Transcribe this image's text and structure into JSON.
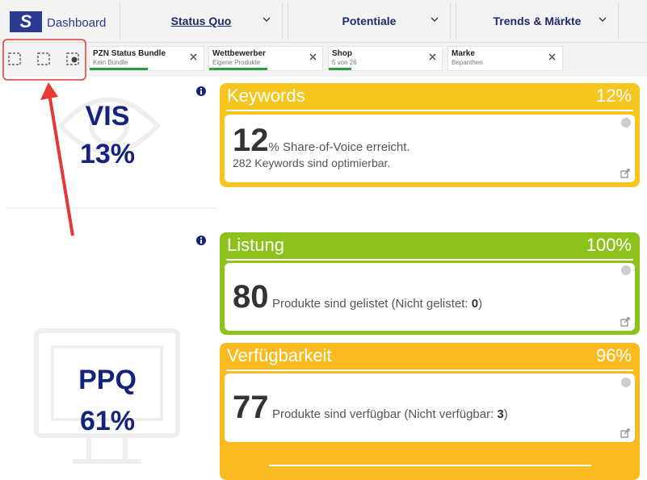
{
  "nav": {
    "logo": "S",
    "dashboard": "Dashboard",
    "tabs": [
      "Status Quo",
      "Potentiale",
      "Trends & Märkte"
    ]
  },
  "filters": [
    {
      "label": "PZN Status Bundle",
      "value": "Kein Bundle"
    },
    {
      "label": "Wettbewerber",
      "value": "Eigene Produkte"
    },
    {
      "label": "Shop",
      "value": "5 von 26"
    },
    {
      "label": "Marke",
      "value": "Bepanthen"
    }
  ],
  "kpis": [
    {
      "label": "VIS",
      "value": "13%"
    },
    {
      "label": "PPQ",
      "value": "61%"
    }
  ],
  "cards": [
    {
      "title": "Keywords",
      "percent": "12%",
      "big": "12",
      "text": "% Share-of-Voice erreicht.",
      "line2": "282 Keywords sind optimierbar."
    },
    {
      "title": "Listung",
      "percent": "100%",
      "big": "80",
      "text": "Produkte sind gelistet (Nicht gelistet: ",
      "count": "0",
      "close": ")"
    },
    {
      "title": "Verfügbarkeit",
      "percent": "96%",
      "big": "77",
      "text": "Produkte sind verfügbar (Nicht verfügbar: ",
      "count": "3",
      "close": ")"
    }
  ]
}
